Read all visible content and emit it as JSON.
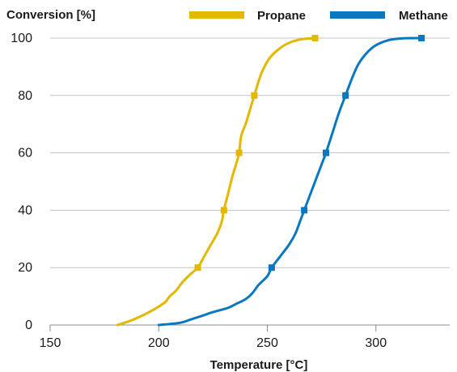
{
  "chart_data": {
    "type": "line",
    "ylabel": "Conversion [%]",
    "xlabel": "Temperature [°C]",
    "xlim": [
      150,
      320
    ],
    "ylim": [
      0,
      100
    ],
    "xticks": [
      150,
      200,
      250,
      300
    ],
    "yticks": [
      0,
      20,
      40,
      60,
      80,
      100
    ],
    "grid": "horizontal",
    "legend_position": "top-right",
    "series": [
      {
        "name": "Propane",
        "color": "#e3b800",
        "curve": [
          [
            181,
            0
          ],
          [
            187,
            1.5
          ],
          [
            193,
            3.5
          ],
          [
            198,
            5.5
          ],
          [
            203,
            8
          ],
          [
            205,
            10
          ],
          [
            208,
            12
          ],
          [
            211,
            15
          ],
          [
            215,
            18
          ],
          [
            218,
            20
          ],
          [
            221,
            24
          ],
          [
            224,
            28
          ],
          [
            227,
            32
          ],
          [
            229,
            36
          ],
          [
            230,
            40
          ],
          [
            232,
            46
          ],
          [
            234,
            52
          ],
          [
            236,
            57
          ],
          [
            237,
            60
          ],
          [
            238,
            66
          ],
          [
            240,
            70
          ],
          [
            242,
            75
          ],
          [
            244,
            80
          ],
          [
            246,
            85
          ],
          [
            248,
            89
          ],
          [
            251,
            93
          ],
          [
            255,
            96
          ],
          [
            259,
            98
          ],
          [
            265,
            99.5
          ],
          [
            272,
            100
          ]
        ],
        "markers": [
          [
            218,
            20
          ],
          [
            230,
            40
          ],
          [
            237,
            60
          ],
          [
            244,
            80
          ],
          [
            272,
            100
          ]
        ]
      },
      {
        "name": "Methane",
        "color": "#0a78c0",
        "curve": [
          [
            200,
            0
          ],
          [
            210,
            0.8
          ],
          [
            215,
            2
          ],
          [
            220,
            3.2
          ],
          [
            225,
            4.5
          ],
          [
            232,
            6
          ],
          [
            236,
            7.5
          ],
          [
            240,
            9
          ],
          [
            243,
            11
          ],
          [
            246,
            14
          ],
          [
            250,
            17
          ],
          [
            252,
            20
          ],
          [
            256,
            24
          ],
          [
            260,
            28
          ],
          [
            263,
            32
          ],
          [
            265,
            36
          ],
          [
            267,
            40
          ],
          [
            270,
            46
          ],
          [
            273,
            52
          ],
          [
            275,
            56
          ],
          [
            277,
            60
          ],
          [
            280,
            67
          ],
          [
            283,
            74
          ],
          [
            286,
            80
          ],
          [
            289,
            86
          ],
          [
            292,
            91
          ],
          [
            296,
            95
          ],
          [
            300,
            97.5
          ],
          [
            306,
            99.3
          ],
          [
            312,
            99.9
          ],
          [
            321,
            100
          ]
        ],
        "markers": [
          [
            252,
            20
          ],
          [
            267,
            40
          ],
          [
            277,
            60
          ],
          [
            286,
            80
          ],
          [
            321,
            100
          ]
        ]
      }
    ]
  }
}
